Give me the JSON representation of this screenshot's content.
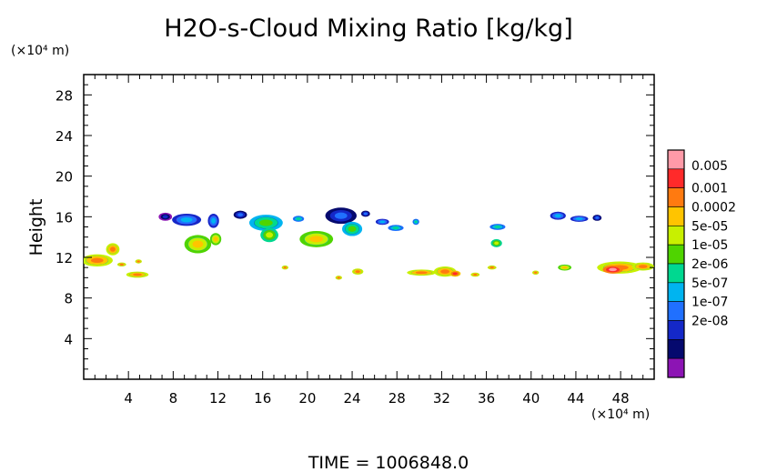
{
  "chart_data": {
    "type": "heatmap",
    "title": "H2O-s-Cloud Mixing Ratio [kg/kg]",
    "ylabel": "Height",
    "y_unit": "(×10⁴ m)",
    "x_unit": "(×10⁴ m)",
    "xlim": [
      0,
      51
    ],
    "ylim": [
      0,
      30
    ],
    "x_ticks": [
      4,
      8,
      12,
      16,
      20,
      24,
      28,
      32,
      36,
      40,
      44,
      48
    ],
    "y_ticks": [
      4,
      8,
      12,
      16,
      20,
      24,
      28
    ],
    "grid": false,
    "time_label": "TIME  =  1006848.0",
    "colorbar": {
      "placement": "right",
      "labels": [
        "0.005",
        "0.001",
        "0.0002",
        "5e-05",
        "1e-05",
        "2e-06",
        "5e-07",
        "1e-07",
        "2e-08"
      ],
      "colors": [
        "#ff9aa8",
        "#ff2a2a",
        "#ff7a10",
        "#ffc400",
        "#c8f000",
        "#4fd400",
        "#00d890",
        "#00b4f0",
        "#2070ff",
        "#1428c8",
        "#05096e",
        "#8c14b4"
      ]
    },
    "blobs": [
      {
        "x": 1.2,
        "y": 11.7,
        "rx": 1.4,
        "ry": 0.6,
        "level": 4
      },
      {
        "x": 2.6,
        "y": 12.8,
        "rx": 0.6,
        "ry": 0.6,
        "level": 4
      },
      {
        "x": 4.8,
        "y": 10.3,
        "rx": 1.0,
        "ry": 0.3,
        "level": 4
      },
      {
        "x": 3.4,
        "y": 11.3,
        "rx": 0.4,
        "ry": 0.2,
        "level": 4
      },
      {
        "x": 4.9,
        "y": 11.6,
        "rx": 0.3,
        "ry": 0.2,
        "level": 4
      },
      {
        "x": 7.3,
        "y": 16.0,
        "rx": 0.6,
        "ry": 0.4,
        "level": 11
      },
      {
        "x": 9.2,
        "y": 15.7,
        "rx": 1.3,
        "ry": 0.6,
        "level": 9
      },
      {
        "x": 11.6,
        "y": 15.6,
        "rx": 0.5,
        "ry": 0.7,
        "level": 9
      },
      {
        "x": 10.2,
        "y": 13.3,
        "rx": 1.2,
        "ry": 0.9,
        "level": 5
      },
      {
        "x": 11.8,
        "y": 13.8,
        "rx": 0.5,
        "ry": 0.6,
        "level": 5
      },
      {
        "x": 14.0,
        "y": 16.2,
        "rx": 0.6,
        "ry": 0.4,
        "level": 10
      },
      {
        "x": 16.3,
        "y": 15.4,
        "rx": 1.5,
        "ry": 0.8,
        "level": 7
      },
      {
        "x": 16.6,
        "y": 14.2,
        "rx": 0.8,
        "ry": 0.7,
        "level": 6
      },
      {
        "x": 19.2,
        "y": 15.8,
        "rx": 0.5,
        "ry": 0.3,
        "level": 8
      },
      {
        "x": 20.8,
        "y": 13.8,
        "rx": 1.5,
        "ry": 0.8,
        "level": 5
      },
      {
        "x": 23.0,
        "y": 16.1,
        "rx": 1.4,
        "ry": 0.8,
        "level": 10
      },
      {
        "x": 24.0,
        "y": 14.8,
        "rx": 0.9,
        "ry": 0.7,
        "level": 7
      },
      {
        "x": 25.2,
        "y": 16.3,
        "rx": 0.4,
        "ry": 0.3,
        "level": 10
      },
      {
        "x": 26.7,
        "y": 15.5,
        "rx": 0.6,
        "ry": 0.3,
        "level": 9
      },
      {
        "x": 27.9,
        "y": 14.9,
        "rx": 0.7,
        "ry": 0.3,
        "level": 8
      },
      {
        "x": 29.7,
        "y": 15.5,
        "rx": 0.3,
        "ry": 0.3,
        "level": 8
      },
      {
        "x": 18.0,
        "y": 11.0,
        "rx": 0.3,
        "ry": 0.2,
        "level": 4
      },
      {
        "x": 22.8,
        "y": 10.0,
        "rx": 0.3,
        "ry": 0.2,
        "level": 4
      },
      {
        "x": 24.5,
        "y": 10.6,
        "rx": 0.5,
        "ry": 0.3,
        "level": 4
      },
      {
        "x": 30.2,
        "y": 10.5,
        "rx": 1.3,
        "ry": 0.3,
        "level": 4
      },
      {
        "x": 32.3,
        "y": 10.6,
        "rx": 1.0,
        "ry": 0.5,
        "level": 4
      },
      {
        "x": 33.2,
        "y": 10.4,
        "rx": 0.5,
        "ry": 0.3,
        "level": 3
      },
      {
        "x": 35.0,
        "y": 10.3,
        "rx": 0.4,
        "ry": 0.2,
        "level": 4
      },
      {
        "x": 37.0,
        "y": 15.0,
        "rx": 0.7,
        "ry": 0.3,
        "level": 8
      },
      {
        "x": 36.9,
        "y": 13.4,
        "rx": 0.5,
        "ry": 0.4,
        "level": 6
      },
      {
        "x": 36.5,
        "y": 11.0,
        "rx": 0.4,
        "ry": 0.2,
        "level": 4
      },
      {
        "x": 40.4,
        "y": 10.5,
        "rx": 0.3,
        "ry": 0.2,
        "level": 4
      },
      {
        "x": 42.4,
        "y": 16.1,
        "rx": 0.7,
        "ry": 0.4,
        "level": 9
      },
      {
        "x": 44.3,
        "y": 15.8,
        "rx": 0.8,
        "ry": 0.3,
        "level": 9
      },
      {
        "x": 45.9,
        "y": 15.9,
        "rx": 0.4,
        "ry": 0.3,
        "level": 10
      },
      {
        "x": 43.0,
        "y": 11.0,
        "rx": 0.6,
        "ry": 0.3,
        "level": 5
      },
      {
        "x": 47.9,
        "y": 11.0,
        "rx": 2.0,
        "ry": 0.6,
        "level": 4
      },
      {
        "x": 47.3,
        "y": 10.8,
        "rx": 0.9,
        "ry": 0.4,
        "level": 2
      },
      {
        "x": 50.0,
        "y": 11.1,
        "rx": 1.0,
        "ry": 0.4,
        "level": 4
      }
    ]
  }
}
